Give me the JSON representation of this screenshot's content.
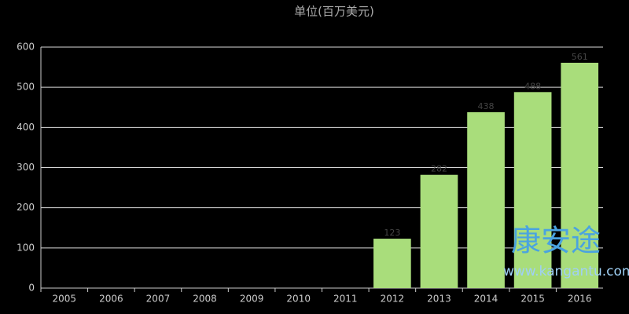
{
  "chart_data": {
    "type": "bar",
    "title": "单位(百万美元)",
    "categories": [
      "2005",
      "2006",
      "2007",
      "2008",
      "2009",
      "2010",
      "2011",
      "2012",
      "2013",
      "2014",
      "2015",
      "2016"
    ],
    "values": [
      null,
      null,
      null,
      null,
      null,
      null,
      null,
      123,
      282,
      438,
      488,
      561
    ],
    "color": "#a9dd7b",
    "ylim": [
      0,
      600
    ],
    "yticks": [
      0,
      100,
      200,
      300,
      400,
      500,
      600
    ],
    "grid": true,
    "watermark": [
      "康安途",
      "www.kangantu.com"
    ]
  }
}
